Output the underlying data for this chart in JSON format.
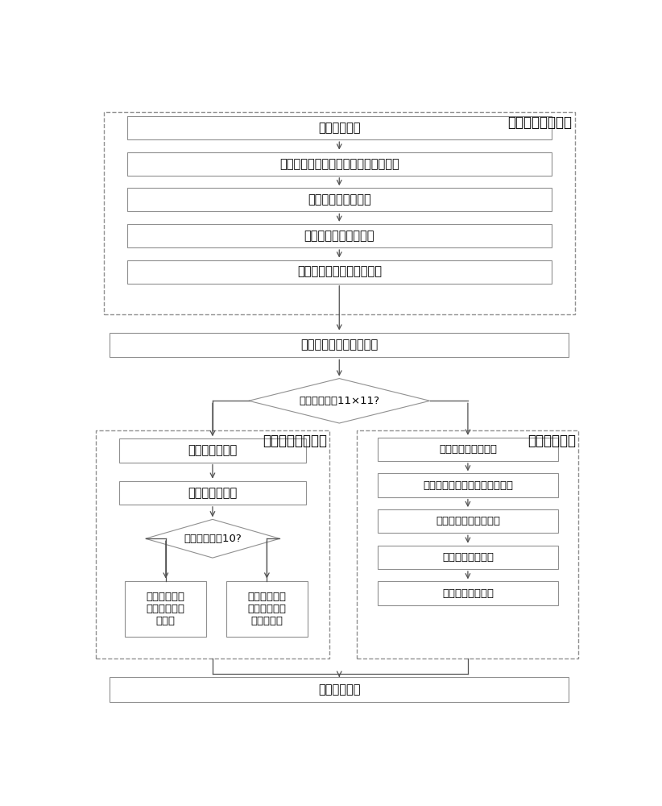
{
  "fig_width": 8.22,
  "fig_height": 10.0,
  "bg_color": "#ffffff",
  "box_edgecolor": "#909090",
  "dashed_edgecolor": "#909090",
  "arrow_color": "#505050",
  "text_color": "#000000",
  "font_size": 10.5,
  "label_font_size": 12.0,
  "small_font_size": 9.5,
  "top_module_label": "单帧目标提取模块",
  "top_module_boxes": [
    "预处理子模块",
    "基于最大类间方差的多阈值分割子模块",
    "区域特征计算子模块",
    "疑似淋巴结提取子模块",
    "局部自适应窗口构造子模块"
  ],
  "sorting_box": "局部自适应窗口排序模块",
  "diamond_label": "局部窗口大于11×11?",
  "left_module_label": "区域重叠跟踪模块",
  "left_boxes": [
    "前向跟踪子模块",
    "后向跟踪子模块"
  ],
  "left_diamond_label": "序列长度大于10?",
  "left_bottom_left": "基于面积变化\n的淋巴结识别\n子模块",
  "left_bottom_right": "基于位移和面\n积特征的血管\n识别子模块",
  "right_module_label": "低秩跟踪模块",
  "right_boxes": [
    "观测矩阵构造子模块",
    "基于低秩模型的矩阵分解子模块",
    "初始首尾帧确定子模块",
    "首尾帧调整子模块",
    "淋巴结识别子模块"
  ],
  "output_box": "结果输出模块"
}
